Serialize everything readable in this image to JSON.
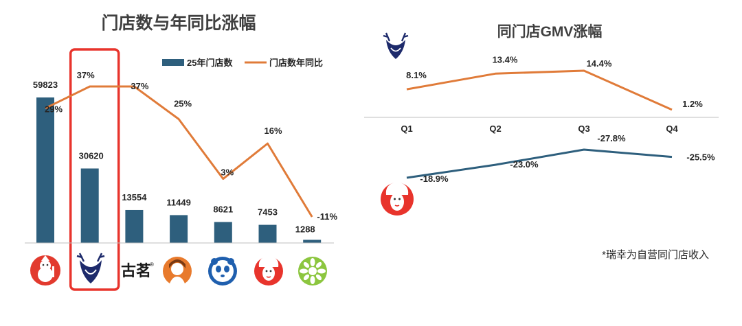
{
  "left": {
    "title": "门店数与年同比涨幅",
    "legend": {
      "bar": "25年门店数",
      "line": "门店数年同比"
    },
    "colors": {
      "bar": "#2E5F7D",
      "line": "#E07B39",
      "highlight": "#E8342C"
    },
    "brands": [
      {
        "icon": "snowman-mascot-icon"
      },
      {
        "icon": "deer-logo-icon"
      },
      {
        "icon": "guming-text-logo",
        "text": "古茗",
        "mark": "®"
      },
      {
        "icon": "girl-portrait-icon"
      },
      {
        "icon": "panda-logo-icon"
      },
      {
        "icon": "opera-mask-icon"
      },
      {
        "icon": "lemon-slice-icon"
      }
    ]
  },
  "right": {
    "title": "同门店GMV涨幅",
    "note": "*瑞幸为自营同门店收入"
  },
  "chart_data": [
    {
      "type": "bar",
      "title": "门店数与年同比涨幅",
      "categories": [
        "",
        "",
        "",
        "",
        "",
        "",
        ""
      ],
      "series": [
        {
          "name": "25年门店数",
          "type": "bar",
          "values": [
            59823,
            30620,
            13554,
            11449,
            8621,
            7453,
            1288
          ],
          "labels": [
            "59823",
            "30620",
            "13554",
            "11449",
            "8621",
            "7453",
            "1288"
          ]
        },
        {
          "name": "门店数年同比",
          "type": "line",
          "values": [
            29,
            37,
            37,
            25,
            3,
            16,
            -11
          ],
          "labels": [
            "29%",
            "37%",
            "37%",
            "25%",
            "3%",
            "16%",
            "-11%"
          ]
        }
      ],
      "highlight_index": 1
    },
    {
      "type": "line",
      "title": "同门店GMV涨幅",
      "categories": [
        "Q1",
        "Q2",
        "Q3",
        "Q4"
      ],
      "series": [
        {
          "brand_icon": "deer-logo-icon",
          "color": "#E07B39",
          "values": [
            8.1,
            13.4,
            14.4,
            1.2
          ],
          "labels": [
            "8.1%",
            "13.4%",
            "14.4%",
            "1.2%"
          ]
        },
        {
          "brand_icon": "opera-mask-icon",
          "color": "#2E5F7D",
          "values": [
            -18.9,
            -23.0,
            -27.8,
            -25.5
          ],
          "labels": [
            "-18.9%",
            "-23.0%",
            "-27.8%",
            "-25.5%"
          ]
        }
      ]
    }
  ]
}
